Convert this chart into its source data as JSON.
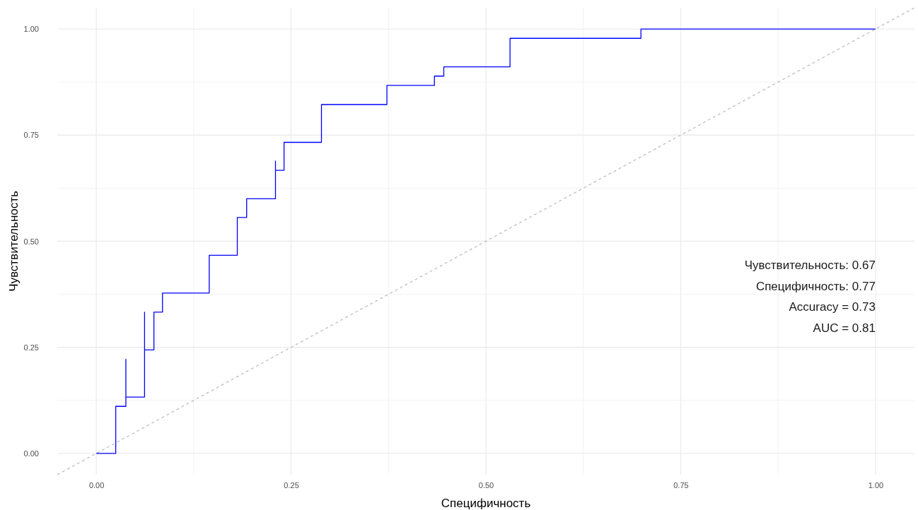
{
  "chart_data": {
    "type": "line",
    "xlabel": "Специфичность",
    "ylabel": "Чувствительность",
    "xlim": [
      -0.05,
      1.05
    ],
    "ylim": [
      -0.05,
      1.05
    ],
    "xticks": [
      {
        "value": 0,
        "label": "0.00"
      },
      {
        "value": 0.125,
        "label": null
      },
      {
        "value": 0.25,
        "label": "0.25"
      },
      {
        "value": 0.375,
        "label": null
      },
      {
        "value": 0.5,
        "label": "0.50"
      },
      {
        "value": 0.625,
        "label": null
      },
      {
        "value": 0.75,
        "label": "0.75"
      },
      {
        "value": 0.875,
        "label": null
      },
      {
        "value": 1,
        "label": "1.00"
      }
    ],
    "yticks": [
      {
        "value": 0,
        "label": "0.00"
      },
      {
        "value": 0.125,
        "label": null
      },
      {
        "value": 0.25,
        "label": "0.25"
      },
      {
        "value": 0.375,
        "label": null
      },
      {
        "value": 0.5,
        "label": "0.50"
      },
      {
        "value": 0.625,
        "label": null
      },
      {
        "value": 0.75,
        "label": "0.75"
      },
      {
        "value": 0.875,
        "label": null
      },
      {
        "value": 1,
        "label": "1.00"
      }
    ],
    "grid": true,
    "series": [
      {
        "color": "#0000ff",
        "line_style": "solid",
        "x": [
          0,
          0.025,
          0.025,
          0.038,
          0.038,
          0.038,
          0.062,
          0.062,
          0.062,
          0.074,
          0.074,
          0.085,
          0.085,
          0.145,
          0.145,
          0.181,
          0.181,
          0.193,
          0.193,
          0.23,
          0.23,
          0.23,
          0.241,
          0.241,
          0.289,
          0.289,
          0.373,
          0.373,
          0.434,
          0.434,
          0.446,
          0.446,
          0.531,
          0.531,
          0.699,
          0.699,
          1
        ],
        "values": [
          0,
          0,
          0.111,
          0.111,
          0.222,
          0.133,
          0.133,
          0.333,
          0.244,
          0.244,
          0.333,
          0.333,
          0.378,
          0.378,
          0.467,
          0.467,
          0.556,
          0.556,
          0.6,
          0.6,
          0.689,
          0.667,
          0.667,
          0.733,
          0.733,
          0.822,
          0.822,
          0.867,
          0.867,
          0.889,
          0.889,
          0.911,
          0.911,
          0.978,
          0.978,
          1,
          1
        ]
      },
      {
        "color": "#bebebe",
        "line_style": "dashed",
        "x": [
          -0.05,
          1.05
        ],
        "values": [
          -0.05,
          1.05
        ]
      }
    ],
    "annotations": [
      "Чувствительность: 0.67",
      "Специфичность: 0.77",
      "Accuracy = 0.73",
      "AUC = 0.81"
    ]
  }
}
